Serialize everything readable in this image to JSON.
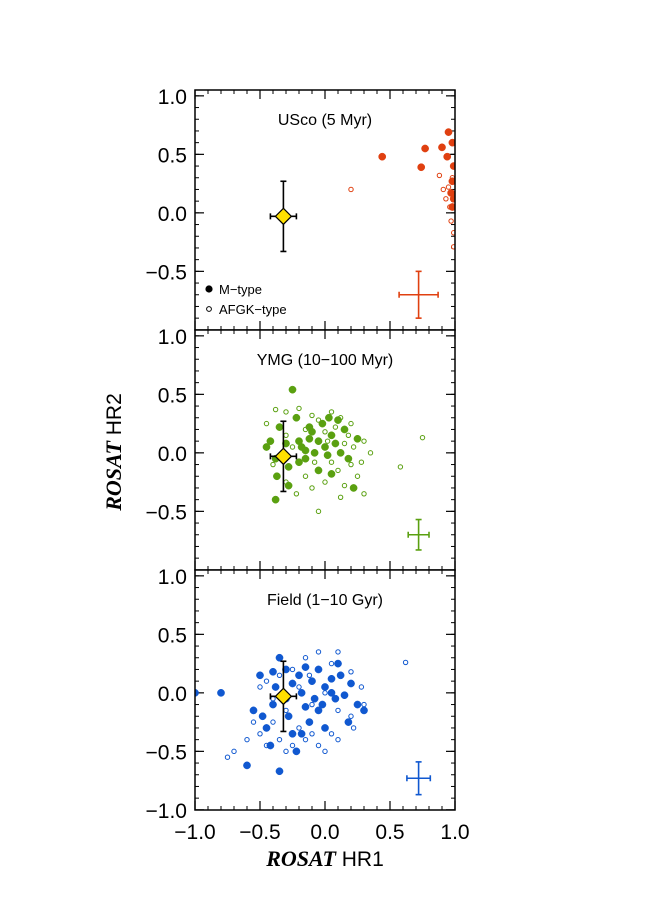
{
  "chart_data": {
    "type": "scatter",
    "x_axis": {
      "label_bold": "ROSAT",
      "label_rest": " HR1",
      "range": [
        -1.0,
        1.0
      ],
      "ticks": [
        "−1.0",
        "−0.5",
        "0.0",
        "0.5",
        "1.0"
      ]
    },
    "y_axis": {
      "label_bold": "ROSAT",
      "label_rest": " HR2",
      "range": [
        -1.05,
        1.0
      ],
      "ticks": [
        "1.0",
        "0.5",
        "0.0",
        "−0.5",
        "−1.0"
      ]
    },
    "legend": {
      "placement": "bottom-left of top panel",
      "entries": [
        {
          "marker": "filled",
          "label": "M−type"
        },
        {
          "marker": "open",
          "label": "AFGK−type"
        }
      ]
    },
    "reference_point": {
      "marker": "yellow-diamond",
      "x": -0.32,
      "y": -0.03,
      "xerr": 0.1,
      "yerr": 0.3,
      "color": "#ffe000"
    },
    "panels": [
      {
        "title": "USco (5 Myr)",
        "color": "#e04010",
        "yticks": [
          "1.0",
          "0.5",
          "0.0",
          "−0.5"
        ],
        "typical_error": {
          "x": 0.72,
          "y": -0.7,
          "xerr": 0.15,
          "yerr": 0.2
        },
        "m_type": [
          [
            0.44,
            0.48
          ],
          [
            0.77,
            0.55
          ],
          [
            0.9,
            0.56
          ],
          [
            0.95,
            0.69
          ],
          [
            0.98,
            0.6
          ],
          [
            0.74,
            0.39
          ],
          [
            0.94,
            0.48
          ],
          [
            0.98,
            0.27
          ],
          [
            0.97,
            0.17
          ],
          [
            0.98,
            0.05
          ],
          [
            0.99,
            0.4
          ],
          [
            0.99,
            0.12
          ]
        ],
        "afgk_type": [
          [
            0.2,
            0.2
          ],
          [
            0.88,
            0.32
          ],
          [
            0.91,
            0.2
          ],
          [
            0.93,
            0.12
          ],
          [
            0.95,
            0.22
          ],
          [
            0.96,
            0.05
          ],
          [
            0.98,
            0.3
          ],
          [
            0.97,
            -0.07
          ],
          [
            0.99,
            -0.17
          ],
          [
            0.99,
            -0.29
          ]
        ]
      },
      {
        "title": "YMG (10−100 Myr)",
        "color": "#5aa010",
        "yticks": [
          "1.0",
          "0.5",
          "0.0",
          "−0.5"
        ],
        "typical_error": {
          "x": 0.72,
          "y": -0.7,
          "xerr": 0.08,
          "yerr": 0.13
        },
        "m_type": [
          [
            -0.42,
            0.1
          ],
          [
            -0.45,
            0.05
          ],
          [
            -0.38,
            -0.05
          ],
          [
            -0.3,
            0.08
          ],
          [
            -0.35,
            0.22
          ],
          [
            -0.28,
            -0.12
          ],
          [
            -0.22,
            0.3
          ],
          [
            -0.2,
            0.1
          ],
          [
            -0.18,
            0.05
          ],
          [
            -0.15,
            -0.05
          ],
          [
            -0.12,
            0.12
          ],
          [
            -0.1,
            0.18
          ],
          [
            -0.08,
            0.0
          ],
          [
            -0.05,
            0.1
          ],
          [
            -0.02,
            0.25
          ],
          [
            0.0,
            0.05
          ],
          [
            0.02,
            -0.02
          ],
          [
            0.05,
            0.15
          ],
          [
            0.08,
            0.08
          ],
          [
            0.12,
            0.0
          ],
          [
            0.15,
            0.2
          ],
          [
            0.18,
            -0.05
          ],
          [
            0.25,
            0.12
          ],
          [
            -0.25,
            0.54
          ],
          [
            -0.37,
            -0.2
          ],
          [
            -0.28,
            -0.28
          ],
          [
            -0.38,
            -0.4
          ],
          [
            -0.05,
            -0.15
          ],
          [
            0.1,
            0.28
          ],
          [
            -0.12,
            0.22
          ],
          [
            -0.2,
            -0.08
          ],
          [
            0.03,
            0.3
          ],
          [
            -0.15,
            0.02
          ],
          [
            0.22,
            -0.3
          ],
          [
            0.05,
            -0.18
          ]
        ],
        "afgk_type": [
          [
            -0.38,
            0.37
          ],
          [
            -0.3,
            0.35
          ],
          [
            -0.2,
            0.38
          ],
          [
            -0.1,
            0.32
          ],
          [
            0.05,
            0.35
          ],
          [
            0.12,
            0.3
          ],
          [
            0.2,
            0.25
          ],
          [
            -0.3,
            0.15
          ],
          [
            -0.25,
            0.05
          ],
          [
            -0.15,
            0.2
          ],
          [
            -0.05,
            0.28
          ],
          [
            0.0,
            0.18
          ],
          [
            0.08,
            0.22
          ],
          [
            0.15,
            0.08
          ],
          [
            0.22,
            0.05
          ],
          [
            0.28,
            -0.08
          ],
          [
            0.3,
            0.1
          ],
          [
            -0.4,
            -0.1
          ],
          [
            -0.3,
            -0.25
          ],
          [
            -0.15,
            -0.2
          ],
          [
            -0.1,
            -0.3
          ],
          [
            0.0,
            -0.25
          ],
          [
            0.05,
            -0.08
          ],
          [
            0.1,
            -0.15
          ],
          [
            0.15,
            -0.28
          ],
          [
            0.2,
            -0.1
          ],
          [
            0.25,
            -0.2
          ],
          [
            -0.05,
            -0.5
          ],
          [
            0.3,
            -0.35
          ],
          [
            0.58,
            -0.12
          ],
          [
            0.75,
            0.13
          ],
          [
            -0.45,
            0.25
          ],
          [
            -0.08,
            -0.08
          ],
          [
            0.18,
            0.15
          ],
          [
            0.12,
            -0.38
          ],
          [
            -0.22,
            -0.35
          ],
          [
            0.02,
            0.1
          ],
          [
            0.35,
            0.0
          ]
        ]
      },
      {
        "title": "Field (1−10 Gyr)",
        "color": "#1058d0",
        "yticks": [
          "1.0",
          "0.5",
          "0.0",
          "−0.5",
          "−1.0"
        ],
        "typical_error": {
          "x": 0.72,
          "y": -0.73,
          "xerr": 0.09,
          "yerr": 0.14
        },
        "m_type": [
          [
            -1.0,
            0.0
          ],
          [
            -0.8,
            0.0
          ],
          [
            -0.6,
            -0.62
          ],
          [
            -0.35,
            -0.67
          ],
          [
            -0.35,
            0.3
          ],
          [
            -0.55,
            -0.15
          ],
          [
            -0.48,
            -0.2
          ],
          [
            -0.45,
            -0.3
          ],
          [
            -0.4,
            -0.1
          ],
          [
            -0.38,
            0.05
          ],
          [
            -0.3,
            0.2
          ],
          [
            -0.28,
            -0.2
          ],
          [
            -0.25,
            -0.35
          ],
          [
            -0.2,
            0.15
          ],
          [
            -0.18,
            0.0
          ],
          [
            -0.15,
            -0.12
          ],
          [
            -0.1,
            0.1
          ],
          [
            -0.08,
            -0.05
          ],
          [
            -0.05,
            0.2
          ],
          [
            -0.02,
            -0.1
          ],
          [
            0.0,
            0.05
          ],
          [
            0.05,
            0.12
          ],
          [
            0.08,
            -0.05
          ],
          [
            0.1,
            0.25
          ],
          [
            0.15,
            -0.02
          ],
          [
            0.2,
            0.08
          ],
          [
            0.25,
            -0.1
          ],
          [
            0.3,
            -0.15
          ],
          [
            -0.5,
            0.15
          ],
          [
            -0.42,
            -0.45
          ],
          [
            -0.22,
            -0.5
          ],
          [
            -0.12,
            -0.25
          ],
          [
            0.0,
            -0.3
          ],
          [
            0.18,
            -0.25
          ],
          [
            -0.3,
            -0.05
          ],
          [
            -0.15,
            0.22
          ],
          [
            0.05,
            0.0
          ],
          [
            -0.25,
            0.08
          ],
          [
            -0.4,
            0.18
          ],
          [
            -0.18,
            -0.35
          ],
          [
            0.12,
            0.15
          ],
          [
            -0.05,
            -0.15
          ]
        ],
        "afgk_type": [
          [
            -0.75,
            -0.55
          ],
          [
            -0.7,
            -0.5
          ],
          [
            -0.6,
            -0.4
          ],
          [
            -0.5,
            -0.35
          ],
          [
            -0.45,
            -0.45
          ],
          [
            -0.4,
            -0.25
          ],
          [
            -0.35,
            -0.4
          ],
          [
            -0.3,
            -0.5
          ],
          [
            -0.25,
            -0.45
          ],
          [
            -0.2,
            -0.3
          ],
          [
            -0.15,
            -0.4
          ],
          [
            -0.1,
            -0.35
          ],
          [
            -0.05,
            -0.45
          ],
          [
            0.0,
            -0.5
          ],
          [
            0.05,
            -0.35
          ],
          [
            0.1,
            -0.4
          ],
          [
            -0.45,
            0.1
          ],
          [
            -0.35,
            0.15
          ],
          [
            -0.25,
            0.2
          ],
          [
            -0.15,
            0.3
          ],
          [
            -0.05,
            0.35
          ],
          [
            0.05,
            0.25
          ],
          [
            0.1,
            0.35
          ],
          [
            0.2,
            0.18
          ],
          [
            0.28,
            0.05
          ],
          [
            0.3,
            -0.1
          ],
          [
            -0.2,
            0.05
          ],
          [
            -0.1,
            -0.1
          ],
          [
            0.0,
            0.0
          ],
          [
            0.1,
            -0.15
          ],
          [
            0.2,
            -0.2
          ],
          [
            -0.3,
            -0.15
          ],
          [
            -0.4,
            -0.05
          ],
          [
            0.62,
            0.26
          ],
          [
            -0.55,
            -0.25
          ],
          [
            -0.5,
            0.05
          ],
          [
            0.22,
            -0.3
          ],
          [
            -0.12,
            0.15
          ]
        ]
      }
    ]
  }
}
